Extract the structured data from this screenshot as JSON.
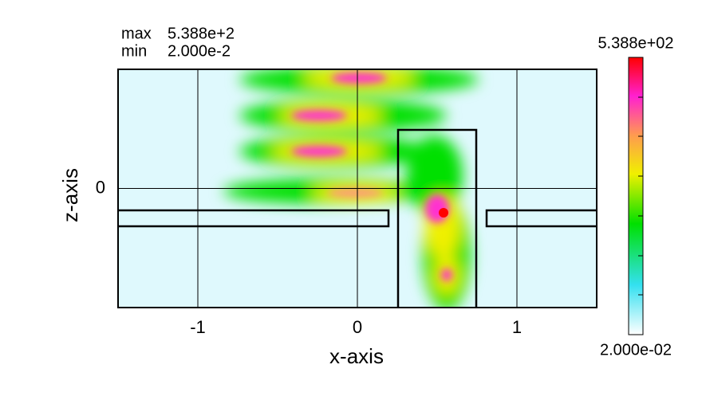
{
  "chart_data": {
    "type": "heatmap",
    "xlabel": "x-axis",
    "ylabel": "z-axis",
    "xlim": [
      -1.5,
      1.5
    ],
    "ylim": [
      -0.75,
      0.75
    ],
    "xticks": [
      -1,
      0,
      1
    ],
    "yticks": [
      0
    ],
    "grid": true,
    "max_label": "max",
    "max": {
      "value": 538.8,
      "label": "5.388e+2"
    },
    "min_label": "min",
    "min": {
      "value": 0.02,
      "label": "2.000e-2"
    },
    "colorbar": {
      "range": [
        0.02,
        538.8
      ],
      "ticks": [
        {
          "value": 538.8,
          "label": "5.388e+02"
        },
        {
          "value": 0.02,
          "label": "2.000e-02"
        }
      ]
    }
  }
}
